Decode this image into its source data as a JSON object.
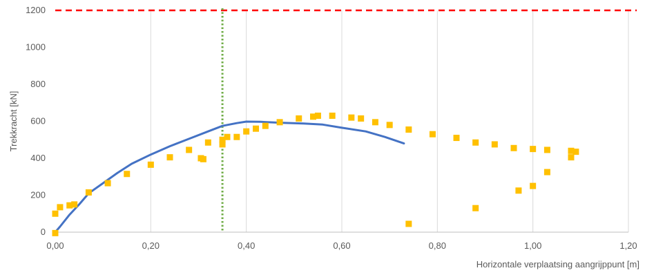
{
  "chart_data": {
    "type": "scatter",
    "xlabel": "Horizontale verplaatsing aangrijppunt [m]",
    "ylabel": "Trekkracht [kN]",
    "xlim": [
      0,
      1.2
    ],
    "ylim": [
      0,
      1200
    ],
    "x_ticks": [
      0,
      0.2,
      0.4,
      0.6,
      0.8,
      1.0,
      1.2
    ],
    "x_tick_labels": [
      "0,00",
      "0,20",
      "0,40",
      "0,60",
      "0,80",
      "1,00",
      "1,20"
    ],
    "y_ticks": [
      0,
      200,
      400,
      600,
      800,
      1000,
      1200
    ],
    "y_tick_labels": [
      "0",
      "200",
      "400",
      "600",
      "800",
      "1000",
      "1200"
    ],
    "grid": "vertical",
    "reference_lines": [
      {
        "orientation": "horizontal",
        "value": 1200,
        "style": "dashed",
        "color": "#ff0000"
      },
      {
        "orientation": "vertical",
        "value": 0.35,
        "style": "dotted",
        "color": "#70ad47"
      }
    ],
    "series": [
      {
        "type": "line",
        "color": "#4472c4",
        "points": [
          [
            0.0,
            0
          ],
          [
            0.01,
            30
          ],
          [
            0.03,
            95
          ],
          [
            0.05,
            150
          ],
          [
            0.07,
            210
          ],
          [
            0.1,
            265
          ],
          [
            0.13,
            320
          ],
          [
            0.16,
            370
          ],
          [
            0.2,
            420
          ],
          [
            0.24,
            465
          ],
          [
            0.28,
            505
          ],
          [
            0.32,
            545
          ],
          [
            0.35,
            575
          ],
          [
            0.38,
            590
          ],
          [
            0.4,
            598
          ],
          [
            0.43,
            597
          ],
          [
            0.47,
            592
          ],
          [
            0.52,
            588
          ],
          [
            0.56,
            582
          ],
          [
            0.6,
            565
          ],
          [
            0.65,
            545
          ],
          [
            0.69,
            515
          ],
          [
            0.73,
            480
          ]
        ]
      },
      {
        "type": "scatter",
        "color": "#ffc000",
        "points": [
          [
            0.0,
            100
          ],
          [
            0.0,
            -5
          ],
          [
            0.01,
            135
          ],
          [
            0.03,
            145
          ],
          [
            0.04,
            150
          ],
          [
            0.07,
            215
          ],
          [
            0.11,
            265
          ],
          [
            0.15,
            315
          ],
          [
            0.2,
            365
          ],
          [
            0.24,
            405
          ],
          [
            0.28,
            445
          ],
          [
            0.305,
            400
          ],
          [
            0.31,
            395
          ],
          [
            0.32,
            485
          ],
          [
            0.35,
            500
          ],
          [
            0.35,
            475
          ],
          [
            0.36,
            515
          ],
          [
            0.38,
            515
          ],
          [
            0.4,
            545
          ],
          [
            0.42,
            560
          ],
          [
            0.44,
            575
          ],
          [
            0.47,
            595
          ],
          [
            0.51,
            615
          ],
          [
            0.54,
            625
          ],
          [
            0.55,
            630
          ],
          [
            0.58,
            630
          ],
          [
            0.62,
            620
          ],
          [
            0.64,
            615
          ],
          [
            0.67,
            595
          ],
          [
            0.7,
            580
          ],
          [
            0.74,
            555
          ],
          [
            0.74,
            45
          ],
          [
            0.79,
            530
          ],
          [
            0.84,
            510
          ],
          [
            0.88,
            485
          ],
          [
            0.88,
            130
          ],
          [
            0.92,
            475
          ],
          [
            0.96,
            455
          ],
          [
            0.97,
            225
          ],
          [
            1.0,
            450
          ],
          [
            1.0,
            250
          ],
          [
            1.03,
            445
          ],
          [
            1.03,
            325
          ],
          [
            1.08,
            440
          ],
          [
            1.08,
            405
          ],
          [
            1.09,
            435
          ]
        ]
      }
    ]
  }
}
